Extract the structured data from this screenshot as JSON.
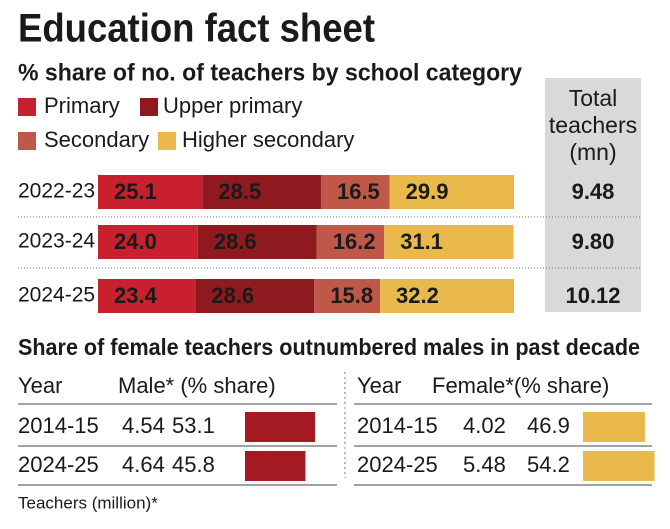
{
  "title": "Education fact sheet",
  "chart_data": {
    "type": "bar",
    "orientation": "horizontal",
    "stacked": true,
    "title": "% share of no. of teachers by school category",
    "categories": [
      "2022-23",
      "2023-24",
      "2024-25"
    ],
    "xlim": [
      0,
      100
    ],
    "series": [
      {
        "name": "Primary",
        "color": "#c8202f",
        "values": [
          25.1,
          24.0,
          23.4
        ],
        "value_labels": [
          "25.1",
          "24.0",
          "23.4"
        ]
      },
      {
        "name": "Upper primary",
        "color": "#8e1a1f",
        "values": [
          28.5,
          28.6,
          28.6
        ],
        "value_labels": [
          "28.5",
          "28.6",
          "28.6"
        ]
      },
      {
        "name": "Secondary",
        "color": "#c0584a",
        "values": [
          16.5,
          16.2,
          15.8
        ],
        "value_labels": [
          "16.5",
          "16.2",
          "15.8"
        ]
      },
      {
        "name": "Higher secondary",
        "color": "#e9b94c",
        "values": [
          29.9,
          31.1,
          32.2
        ],
        "value_labels": [
          "29.9",
          "31.1",
          "32.2"
        ]
      }
    ],
    "totals": {
      "header": [
        "Total",
        "teachers",
        "(mn)"
      ],
      "values": [
        9.48,
        9.8,
        10.12
      ],
      "value_labels": [
        "9.48",
        "9.80",
        "10.12"
      ]
    }
  },
  "gender": {
    "title": "Share of female teachers outnumbered males in past decade",
    "footnote": "Teachers (million)*",
    "tables": [
      {
        "headers": [
          "Year",
          "Male* (% share)"
        ],
        "color": "#a51a22",
        "rows": [
          {
            "year": "2014-15",
            "count": 4.54,
            "share": 53.1
          },
          {
            "year": "2024-25",
            "count": 4.64,
            "share": 45.8
          }
        ]
      },
      {
        "headers": [
          "Year",
          "Female*(% share)"
        ],
        "color": "#e9b94c",
        "rows": [
          {
            "year": "2014-15",
            "count": 4.02,
            "share": 46.9
          },
          {
            "year": "2024-25",
            "count": 5.48,
            "share": 54.2
          }
        ]
      }
    ]
  }
}
